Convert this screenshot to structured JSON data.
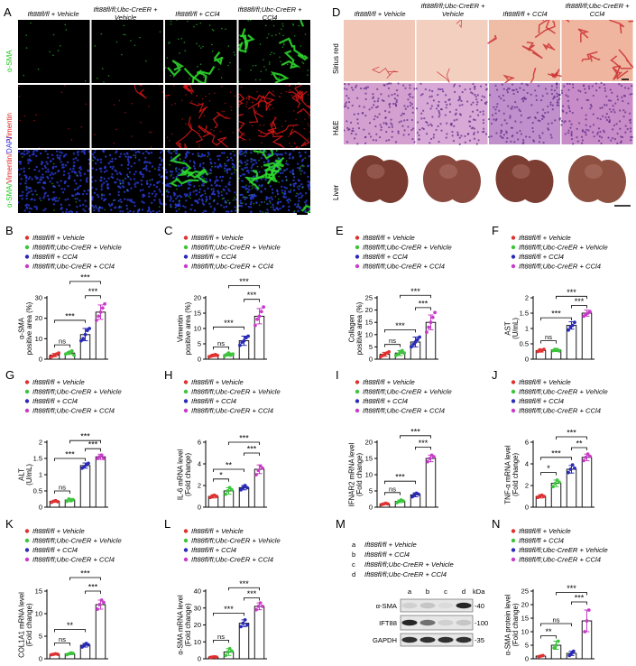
{
  "panels": {
    "A": "A",
    "B": "B",
    "C": "C",
    "D": "D",
    "E": "E",
    "F": "F",
    "G": "G",
    "H": "H",
    "I": "I",
    "J": "J",
    "K": "K",
    "L": "L",
    "M": "M",
    "N": "N"
  },
  "panelA": {
    "col_headers": [
      "Ift88fl/fl + Vehicle",
      "Ift88fl/fl;Ubc-CreER + Vehicle",
      "Ift88fl/fl + CCl4",
      "Ift88fl/fl;Ubc-CreER + CCl4"
    ],
    "row_labels": [
      "α-SMA",
      "Vimentin",
      "α-SMA/ Vimentin/DAPI"
    ],
    "row_label_parts": {
      "sma": "α-SMA/",
      "vim": "Vimentin/",
      "dapi": "DAPI"
    }
  },
  "panelD": {
    "col_headers": [
      "Ift88fl/fl + Vehicle",
      "Ift88fl/fl;Ubc-CreER + Vehicle",
      "Ift88fl/fl + CCl4",
      "Ift88fl/fl;Ubc-CreER + CCl4"
    ],
    "row_labels": [
      "Sirius red",
      "H&E",
      "Liver"
    ]
  },
  "legend_standard": [
    "Ift88fl/fl + Vehicle",
    "Ift88fl/fl;Ubc-CreER + Vehicle",
    "Ift88fl/fl + CCl4",
    "Ift88fl/fl;Ubc-CreER + CCl4"
  ],
  "legend_swapped": [
    "Ift88fl/fl + Vehicle",
    "Ift88fl/fl + CCl4",
    "Ift88fl/fl;Ubc-CreER + Vehicle",
    "Ift88fl/fl;Ubc-CreER + CCl4"
  ],
  "group_colors": [
    "#e03030",
    "#3cc43c",
    "#2a2ab8",
    "#c83cc8"
  ],
  "sig": {
    "ns": "ns",
    "s1": "*",
    "s2": "**",
    "s3": "***"
  },
  "western": {
    "legend_letters": [
      "a",
      "b",
      "c",
      "d"
    ],
    "legend_text": [
      "Ift88fl/fl + Vehicle",
      "Ift88fl/fl + CCl4",
      "Ift88fl/fl;Ubc-CreER + Vehicle",
      "Ift88fl/fl;Ubc-CreER + CCl4"
    ],
    "lanes": [
      "a",
      "b",
      "c",
      "d"
    ],
    "unit": "kDa",
    "bands": [
      "α-SMA",
      "IFT88",
      "GAPDH"
    ],
    "markers": [
      "-40",
      "-100",
      "-35"
    ]
  },
  "chart_data": [
    {
      "id": "B",
      "type": "bar",
      "ylabel": "α-SMA positive area (%)",
      "ylim": [
        0,
        30
      ],
      "yticks": [
        0,
        10,
        20,
        30
      ],
      "categories": [
        "Ift88fl/fl + Vehicle",
        "Ift88fl/fl;Ubc-CreER + Vehicle",
        "Ift88fl/fl + CCl4",
        "Ift88fl/fl;Ubc-CreER + CCl4"
      ],
      "values": [
        2,
        3,
        12,
        23
      ],
      "errors": [
        0.8,
        0.7,
        3,
        3.5
      ],
      "points": [
        [
          1,
          1.5,
          2,
          2.5,
          3
        ],
        [
          2.5,
          3,
          3.5,
          4,
          2
        ],
        [
          9,
          10,
          12,
          14,
          15
        ],
        [
          19,
          21,
          23,
          25,
          27
        ]
      ],
      "brackets": [
        {
          "a": 0,
          "b": 1,
          "y": 7,
          "label": "ns"
        },
        {
          "a": 0,
          "b": 2,
          "y": 19,
          "label": "***"
        },
        {
          "a": 2,
          "b": 3,
          "y": 31,
          "label": "***"
        },
        {
          "a": 1,
          "b": 3,
          "y": 38,
          "label": "***"
        }
      ]
    },
    {
      "id": "C",
      "type": "bar",
      "ylabel": "Vimentin positive area (%)",
      "ylim": [
        0,
        20
      ],
      "yticks": [
        0,
        5,
        10,
        15,
        20
      ],
      "categories": [
        "Ift88fl/fl + Vehicle",
        "Ift88fl/fl;Ubc-CreER + Vehicle",
        "Ift88fl/fl + CCl4",
        "Ift88fl/fl;Ubc-CreER + CCl4"
      ],
      "values": [
        1.2,
        1.5,
        6,
        14
      ],
      "errors": [
        0.4,
        0.5,
        1.5,
        2.5
      ],
      "points": [
        [
          0.8,
          1,
          1.3,
          1.5,
          1.2
        ],
        [
          1,
          1.5,
          2,
          1.3,
          1.7
        ],
        [
          4.5,
          5.5,
          6,
          7,
          7.5
        ],
        [
          11,
          13,
          14,
          15.5,
          17
        ]
      ],
      "brackets": [
        {
          "a": 0,
          "b": 1,
          "y": 4,
          "label": "ns"
        },
        {
          "a": 0,
          "b": 2,
          "y": 10.5,
          "label": "***"
        },
        {
          "a": 2,
          "b": 3,
          "y": 19.5,
          "label": "***"
        },
        {
          "a": 1,
          "b": 3,
          "y": 24,
          "label": "***"
        }
      ]
    },
    {
      "id": "E",
      "type": "bar",
      "ylabel": "Collagen positive area (%)",
      "ylim": [
        0,
        25
      ],
      "yticks": [
        0,
        5,
        10,
        15,
        20,
        25
      ],
      "categories": [
        "Ift88fl/fl + Vehicle",
        "Ift88fl/fl;Ubc-CreER + Vehicle",
        "Ift88fl/fl + CCl4",
        "Ift88fl/fl;Ubc-CreER + CCl4"
      ],
      "values": [
        2,
        2.5,
        7,
        15
      ],
      "errors": [
        0.8,
        1,
        2,
        3
      ],
      "points": [
        [
          1,
          1.5,
          2,
          2.5,
          3
        ],
        [
          1.5,
          2,
          3,
          3.5,
          2.5
        ],
        [
          5,
          6,
          7,
          8,
          9
        ],
        [
          11,
          13,
          15,
          17,
          19
        ]
      ],
      "brackets": [
        {
          "a": 0,
          "b": 1,
          "y": 6,
          "label": "ns"
        },
        {
          "a": 0,
          "b": 2,
          "y": 12,
          "label": "***"
        },
        {
          "a": 2,
          "b": 3,
          "y": 21,
          "label": "***"
        },
        {
          "a": 1,
          "b": 3,
          "y": 26,
          "label": "***"
        }
      ]
    },
    {
      "id": "F",
      "type": "bar",
      "ylabel": "AST (U/mL)",
      "ylim": [
        0,
        2.0
      ],
      "yticks": [
        0,
        0.5,
        1.0,
        1.5,
        2.0
      ],
      "categories": [
        "Ift88fl/fl + Vehicle",
        "Ift88fl/fl;Ubc-CreER + Vehicle",
        "Ift88fl/fl + CCl4",
        "Ift88fl/fl;Ubc-CreER + CCl4"
      ],
      "values": [
        0.28,
        0.3,
        1.1,
        1.5
      ],
      "errors": [
        0.05,
        0.05,
        0.12,
        0.1
      ],
      "points": [
        [
          0.25,
          0.3,
          0.28,
          0.32
        ],
        [
          0.28,
          0.32,
          0.3,
          0.27
        ],
        [
          0.95,
          1.05,
          1.1,
          1.2
        ],
        [
          1.4,
          1.45,
          1.5,
          1.55
        ]
      ],
      "brackets": [
        {
          "a": 0,
          "b": 1,
          "y": 0.6,
          "label": "ns"
        },
        {
          "a": 0,
          "b": 2,
          "y": 1.35,
          "label": "***"
        },
        {
          "a": 2,
          "b": 3,
          "y": 1.75,
          "label": "***"
        },
        {
          "a": 1,
          "b": 3,
          "y": 2.05,
          "label": "***"
        }
      ]
    },
    {
      "id": "G",
      "type": "bar",
      "ylabel": "ALT (U/mL)",
      "ylim": [
        0,
        2.0
      ],
      "yticks": [
        0,
        0.5,
        1.0,
        1.5,
        2.0
      ],
      "categories": [
        "Ift88fl/fl + Vehicle",
        "Ift88fl/fl;Ubc-CreER + Vehicle",
        "Ift88fl/fl + CCl4",
        "Ift88fl/fl;Ubc-CreER + CCl4"
      ],
      "values": [
        0.18,
        0.22,
        1.28,
        1.55
      ],
      "errors": [
        0.03,
        0.05,
        0.08,
        0.08
      ],
      "points": [
        [
          0.15,
          0.18,
          0.2,
          0.17
        ],
        [
          0.18,
          0.25,
          0.2,
          0.23
        ],
        [
          1.2,
          1.25,
          1.3,
          1.35
        ],
        [
          1.5,
          1.55,
          1.6,
          1.5
        ]
      ],
      "brackets": [
        {
          "a": 0,
          "b": 1,
          "y": 0.5,
          "label": "ns"
        },
        {
          "a": 0,
          "b": 2,
          "y": 1.5,
          "label": "***"
        },
        {
          "a": 2,
          "b": 3,
          "y": 1.8,
          "label": "***"
        },
        {
          "a": 1,
          "b": 3,
          "y": 2.05,
          "label": "***"
        }
      ]
    },
    {
      "id": "H",
      "type": "bar",
      "ylabel": "IL-6 mRNA level (Fold change)",
      "ylim": [
        0,
        6
      ],
      "yticks": [
        0,
        2,
        4,
        6
      ],
      "categories": [
        "Ift88fl/fl + Vehicle",
        "Ift88fl/fl;Ubc-CreER + Vehicle",
        "Ift88fl/fl + CCl4",
        "Ift88fl/fl;Ubc-CreER + CCl4"
      ],
      "values": [
        1,
        1.5,
        1.8,
        3.5
      ],
      "errors": [
        0.15,
        0.3,
        0.2,
        0.4
      ],
      "points": [
        [
          0.9,
          1,
          1.1,
          1
        ],
        [
          1.2,
          1.5,
          1.8,
          1.6
        ],
        [
          1.6,
          1.8,
          2,
          1.8
        ],
        [
          3,
          3.4,
          3.8,
          3.6
        ]
      ],
      "brackets": [
        {
          "a": 0,
          "b": 1,
          "y": 2.6,
          "label": "*"
        },
        {
          "a": 0,
          "b": 2,
          "y": 3.5,
          "label": "**"
        },
        {
          "a": 2,
          "b": 3,
          "y": 5.0,
          "label": "***"
        },
        {
          "a": 1,
          "b": 3,
          "y": 6.0,
          "label": "***"
        }
      ]
    },
    {
      "id": "I",
      "type": "bar",
      "ylabel": "IFNAR2 mRNA level (Fold change)",
      "ylim": [
        0,
        20
      ],
      "yticks": [
        0,
        5,
        10,
        15,
        20
      ],
      "categories": [
        "Ift88fl/fl + Vehicle",
        "Ift88fl/fl;Ubc-CreER + Vehicle",
        "Ift88fl/fl + CCl4",
        "Ift88fl/fl;Ubc-CreER + CCl4"
      ],
      "values": [
        1,
        1.8,
        3.8,
        15
      ],
      "errors": [
        0.2,
        0.4,
        0.6,
        1
      ],
      "points": [
        [
          0.8,
          1,
          1.2,
          1
        ],
        [
          1.4,
          1.8,
          2.2,
          1.9
        ],
        [
          3.2,
          3.8,
          4.3,
          4
        ],
        [
          14,
          15,
          16,
          15.5
        ]
      ],
      "brackets": [
        {
          "a": 0,
          "b": 1,
          "y": 4.5,
          "label": "ns"
        },
        {
          "a": 0,
          "b": 2,
          "y": 8,
          "label": "***"
        },
        {
          "a": 2,
          "b": 3,
          "y": 18.5,
          "label": "***"
        },
        {
          "a": 1,
          "b": 3,
          "y": 22,
          "label": "***"
        }
      ]
    },
    {
      "id": "J",
      "type": "bar",
      "ylabel": "TNF-α mRNA level (Fold change)",
      "ylim": [
        0,
        6
      ],
      "yticks": [
        0,
        2,
        4,
        6
      ],
      "categories": [
        "Ift88fl/fl + Vehicle",
        "Ift88fl/fl;Ubc-CreER + Vehicle",
        "Ift88fl/fl + CCl4",
        "Ift88fl/fl;Ubc-CreER + CCl4"
      ],
      "values": [
        1,
        2.2,
        3.5,
        4.6
      ],
      "errors": [
        0.15,
        0.3,
        0.35,
        0.3
      ],
      "points": [
        [
          0.9,
          1,
          1.1,
          1
        ],
        [
          1.9,
          2.2,
          2.5,
          2.3
        ],
        [
          3.2,
          3.5,
          3.9,
          3.6
        ],
        [
          4.3,
          4.6,
          4.9,
          4.7
        ]
      ],
      "brackets": [
        {
          "a": 0,
          "b": 1,
          "y": 3.2,
          "label": "*"
        },
        {
          "a": 0,
          "b": 2,
          "y": 4.6,
          "label": "***"
        },
        {
          "a": 2,
          "b": 3,
          "y": 5.5,
          "label": "**"
        },
        {
          "a": 1,
          "b": 3,
          "y": 6.5,
          "label": "***"
        }
      ]
    },
    {
      "id": "K",
      "type": "bar",
      "ylabel": "COL1A1 mRNA level (Fold change)",
      "ylim": [
        0,
        15
      ],
      "yticks": [
        0,
        5,
        10,
        15
      ],
      "categories": [
        "Ift88fl/fl + Vehicle",
        "Ift88fl/fl;Ubc-CreER + Vehicle",
        "Ift88fl/fl + CCl4",
        "Ift88fl/fl;Ubc-CreER + CCl4"
      ],
      "values": [
        1,
        1.1,
        3,
        12
      ],
      "errors": [
        0.1,
        0.2,
        0.4,
        1
      ],
      "points": [
        [
          0.9,
          1,
          1.1,
          1
        ],
        [
          0.9,
          1.1,
          1.3,
          1.2
        ],
        [
          2.6,
          3,
          3.4,
          3.1
        ],
        [
          11,
          12,
          13,
          12.5
        ]
      ],
      "brackets": [
        {
          "a": 0,
          "b": 1,
          "y": 3.5,
          "label": "ns"
        },
        {
          "a": 0,
          "b": 2,
          "y": 6.5,
          "label": "**"
        },
        {
          "a": 2,
          "b": 3,
          "y": 15,
          "label": "***"
        },
        {
          "a": 1,
          "b": 3,
          "y": 18,
          "label": "***"
        }
      ]
    },
    {
      "id": "L",
      "type": "bar",
      "ylabel": "α-SMA mRNA level (Fold change)",
      "ylim": [
        0,
        40
      ],
      "yticks": [
        0,
        10,
        20,
        30,
        40
      ],
      "categories": [
        "Ift88fl/fl + Vehicle",
        "Ift88fl/fl;Ubc-CreER + Vehicle",
        "Ift88fl/fl + CCl4",
        "Ift88fl/fl;Ubc-CreER + CCl4"
      ],
      "values": [
        1,
        4,
        21,
        31
      ],
      "errors": [
        0.3,
        2,
        2,
        2
      ],
      "points": [
        [
          0.8,
          1,
          1.2,
          1
        ],
        [
          2,
          4,
          6,
          4.5
        ],
        [
          19,
          21,
          23,
          20
        ],
        [
          29,
          31,
          33,
          31
        ]
      ],
      "brackets": [
        {
          "a": 0,
          "b": 1,
          "y": 11,
          "label": "ns"
        },
        {
          "a": 0,
          "b": 2,
          "y": 27,
          "label": "***"
        },
        {
          "a": 2,
          "b": 3,
          "y": 36,
          "label": "***"
        },
        {
          "a": 1,
          "b": 3,
          "y": 42,
          "label": "***"
        }
      ]
    },
    {
      "id": "N",
      "type": "bar",
      "ylabel": "α-SMA protein level (Fold change)",
      "ylim": [
        0,
        25
      ],
      "yticks": [
        0,
        5,
        10,
        15,
        20,
        25
      ],
      "categories": [
        "Ift88fl/fl + Vehicle",
        "Ift88fl/fl + CCl4",
        "Ift88fl/fl;Ubc-CreER + Vehicle",
        "Ift88fl/fl;Ubc-CreER + CCl4"
      ],
      "values": [
        1,
        5,
        2,
        14
      ],
      "errors": [
        0.2,
        1.5,
        0.8,
        4
      ],
      "points": [
        [
          0.8,
          1,
          1.2
        ],
        [
          4,
          5,
          6.5
        ],
        [
          1.2,
          2,
          2.8
        ],
        [
          10,
          14,
          18
        ]
      ],
      "brackets": [
        {
          "a": 0,
          "b": 1,
          "y": 8.5,
          "label": "**"
        },
        {
          "a": 0,
          "b": 2,
          "y": 13,
          "label": "ns"
        },
        {
          "a": 2,
          "b": 3,
          "y": 21,
          "label": "***"
        },
        {
          "a": 1,
          "b": 3,
          "y": 24.5,
          "label": "***"
        }
      ]
    }
  ]
}
